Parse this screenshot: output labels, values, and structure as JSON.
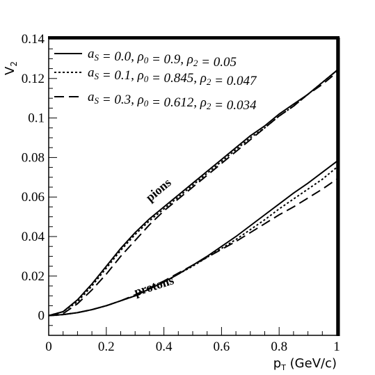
{
  "chart_data": {
    "type": "line",
    "xlabel": "p_T (GeV/c)",
    "ylabel": "V_2",
    "xlim": [
      0,
      1
    ],
    "ylim": [
      -0.01,
      0.14
    ],
    "x_ticks": [
      "0",
      "0.2",
      "0.4",
      "0.6",
      "0.8",
      "1"
    ],
    "y_ticks": [
      "0",
      "0.02",
      "0.04",
      "0.06",
      "0.08",
      "0.1",
      "0.12",
      "0.14"
    ],
    "x_tick_values": [
      0,
      0.2,
      0.4,
      0.6,
      0.8,
      1.0
    ],
    "y_tick_values": [
      0,
      0.02,
      0.04,
      0.06,
      0.08,
      0.1,
      0.12,
      0.14
    ],
    "legend_placement": "top-left",
    "legend": [
      {
        "label": "a_S = 0.0, ρ_0 = 0.9,    ρ_2 = 0.05",
        "style": "solid"
      },
      {
        "label": "a_S = 0.1, ρ_0 = 0.845, ρ_2 = 0.047",
        "style": "dotted"
      },
      {
        "label": "a_S = 0.3, ρ_0 = 0.612, ρ_2 = 0.034",
        "style": "dashed"
      }
    ],
    "annotations": [
      {
        "text": "pions",
        "x": 0.39,
        "y": 0.062,
        "rotate": -40
      },
      {
        "text": "protons",
        "x": 0.37,
        "y": 0.013,
        "rotate": -18
      }
    ],
    "series": [
      {
        "group": "pions",
        "style": "solid",
        "x": [
          0,
          0.05,
          0.1,
          0.15,
          0.2,
          0.25,
          0.3,
          0.35,
          0.4,
          0.45,
          0.5,
          0.55,
          0.6,
          0.65,
          0.7,
          0.75,
          0.8,
          0.85,
          0.9,
          0.95,
          1.0
        ],
        "values": [
          0,
          0.002,
          0.008,
          0.016,
          0.025,
          0.034,
          0.042,
          0.049,
          0.055,
          0.061,
          0.067,
          0.073,
          0.079,
          0.085,
          0.091,
          0.096,
          0.102,
          0.107,
          0.112,
          0.118,
          0.124
        ]
      },
      {
        "group": "pions",
        "style": "dotted",
        "x": [
          0,
          0.05,
          0.1,
          0.15,
          0.2,
          0.25,
          0.3,
          0.35,
          0.4,
          0.45,
          0.5,
          0.55,
          0.6,
          0.65,
          0.7,
          0.75,
          0.8,
          0.85,
          0.9,
          0.95,
          1.0
        ],
        "values": [
          0,
          0.002,
          0.007,
          0.015,
          0.024,
          0.033,
          0.041,
          0.048,
          0.054,
          0.06,
          0.066,
          0.072,
          0.078,
          0.084,
          0.09,
          0.095,
          0.101,
          0.106,
          0.112,
          0.118,
          0.124
        ]
      },
      {
        "group": "pions",
        "style": "dashed",
        "x": [
          0,
          0.05,
          0.1,
          0.15,
          0.2,
          0.25,
          0.3,
          0.35,
          0.4,
          0.45,
          0.5,
          0.55,
          0.6,
          0.65,
          0.7,
          0.75,
          0.8,
          0.85,
          0.9,
          0.95,
          1.0
        ],
        "values": [
          0,
          0.001,
          0.006,
          0.013,
          0.021,
          0.03,
          0.038,
          0.046,
          0.053,
          0.059,
          0.065,
          0.071,
          0.077,
          0.083,
          0.089,
          0.095,
          0.101,
          0.106,
          0.112,
          0.117,
          0.123
        ]
      },
      {
        "group": "protons",
        "style": "solid",
        "x": [
          0,
          0.05,
          0.1,
          0.15,
          0.2,
          0.25,
          0.3,
          0.35,
          0.4,
          0.45,
          0.5,
          0.55,
          0.6,
          0.65,
          0.7,
          0.75,
          0.8,
          0.85,
          0.9,
          0.95,
          1.0
        ],
        "values": [
          0,
          0.0005,
          0.0015,
          0.003,
          0.005,
          0.0075,
          0.01,
          0.0135,
          0.017,
          0.021,
          0.0255,
          0.03,
          0.035,
          0.04,
          0.0455,
          0.051,
          0.0565,
          0.062,
          0.067,
          0.0725,
          0.078
        ]
      },
      {
        "group": "protons",
        "style": "dotted",
        "x": [
          0,
          0.05,
          0.1,
          0.15,
          0.2,
          0.25,
          0.3,
          0.35,
          0.4,
          0.45,
          0.5,
          0.55,
          0.6,
          0.65,
          0.7,
          0.75,
          0.8,
          0.85,
          0.9,
          0.95,
          1.0
        ],
        "values": [
          0,
          0.0005,
          0.0015,
          0.003,
          0.005,
          0.0075,
          0.01,
          0.0135,
          0.017,
          0.021,
          0.025,
          0.0295,
          0.034,
          0.0385,
          0.0435,
          0.0485,
          0.054,
          0.059,
          0.064,
          0.069,
          0.075
        ]
      },
      {
        "group": "protons",
        "style": "dashed",
        "x": [
          0,
          0.05,
          0.1,
          0.15,
          0.2,
          0.25,
          0.3,
          0.35,
          0.4,
          0.45,
          0.5,
          0.55,
          0.6,
          0.65,
          0.7,
          0.75,
          0.8,
          0.85,
          0.9,
          0.95,
          1.0
        ],
        "values": [
          0,
          0.0005,
          0.0015,
          0.003,
          0.005,
          0.0075,
          0.0105,
          0.014,
          0.0175,
          0.0215,
          0.0255,
          0.0295,
          0.0335,
          0.0375,
          0.042,
          0.0465,
          0.051,
          0.055,
          0.0595,
          0.064,
          0.069
        ]
      }
    ]
  }
}
